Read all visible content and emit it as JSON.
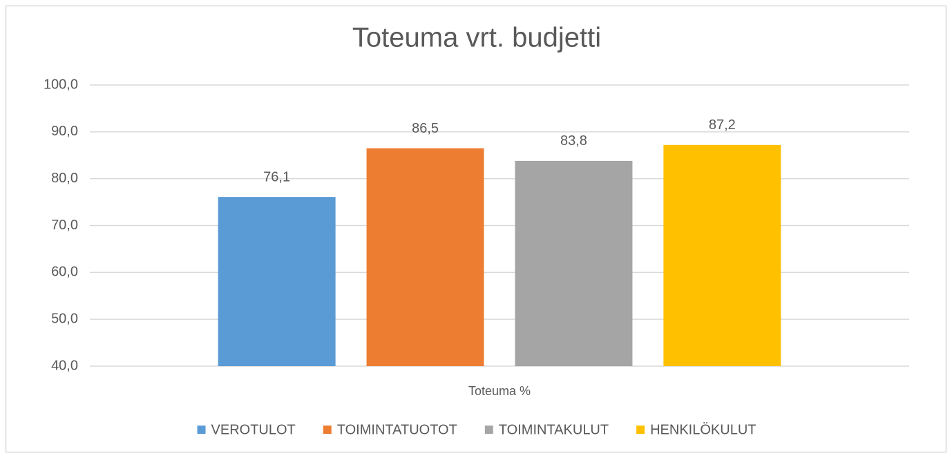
{
  "chart_data": {
    "type": "bar",
    "title": "Toteuma vrt. budjetti",
    "categories": [
      "Toteuma %"
    ],
    "series": [
      {
        "name": "VEROTULOT",
        "color": "#5b9bd5",
        "values": [
          76.1
        ],
        "value_labels": [
          "76,1"
        ]
      },
      {
        "name": "TOIMINTATUOTOT",
        "color": "#ed7d31",
        "values": [
          86.5
        ],
        "value_labels": [
          "86,5"
        ]
      },
      {
        "name": "TOIMINTAKULUT",
        "color": "#a5a5a5",
        "values": [
          83.8
        ],
        "value_labels": [
          "83,8"
        ]
      },
      {
        "name": "HENKILÖKULUT",
        "color": "#ffc000",
        "values": [
          87.2
        ],
        "value_labels": [
          "87,2"
        ]
      }
    ],
    "ylim": [
      40,
      100
    ],
    "yticks": [
      {
        "value": 40,
        "label": "40,0"
      },
      {
        "value": 50,
        "label": "50,0"
      },
      {
        "value": 60,
        "label": "60,0"
      },
      {
        "value": 70,
        "label": "70,0"
      },
      {
        "value": 80,
        "label": "80,0"
      },
      {
        "value": 90,
        "label": "90,0"
      },
      {
        "value": 100,
        "label": "100,0"
      }
    ],
    "grid": true,
    "legend": "bottom"
  }
}
